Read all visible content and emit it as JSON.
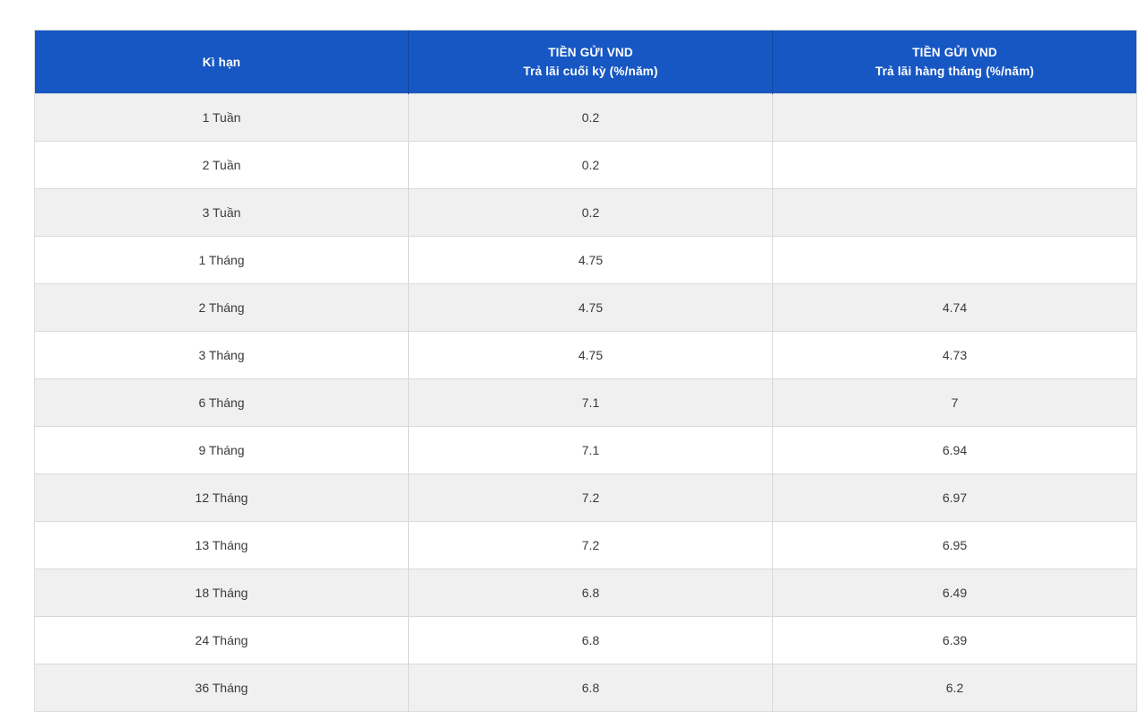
{
  "colors": {
    "header_bg": "#1757c3",
    "header_text": "#ffffff",
    "row_alt_bg": "#f0f0f1",
    "row_bg": "#ffffff",
    "border": "#d9d9d9",
    "body_text": "#3a3a3a"
  },
  "table": {
    "header": {
      "term_label": "Kì hạn",
      "col_end_of_term": {
        "line1": "TIỀN GỬI VND",
        "line2": "Trả lãi cuối kỳ (%/năm)"
      },
      "col_monthly": {
        "line1": "TIỀN GỬI VND",
        "line2": "Trả lãi hàng tháng (%/năm)"
      }
    },
    "rows": [
      {
        "term": "1 Tuần",
        "rate_end_of_term": "0.2",
        "rate_monthly": ""
      },
      {
        "term": "2 Tuần",
        "rate_end_of_term": "0.2",
        "rate_monthly": ""
      },
      {
        "term": "3 Tuần",
        "rate_end_of_term": "0.2",
        "rate_monthly": ""
      },
      {
        "term": "1 Tháng",
        "rate_end_of_term": "4.75",
        "rate_monthly": ""
      },
      {
        "term": "2 Tháng",
        "rate_end_of_term": "4.75",
        "rate_monthly": "4.74"
      },
      {
        "term": "3 Tháng",
        "rate_end_of_term": "4.75",
        "rate_monthly": "4.73"
      },
      {
        "term": "6 Tháng",
        "rate_end_of_term": "7.1",
        "rate_monthly": "7"
      },
      {
        "term": "9 Tháng",
        "rate_end_of_term": "7.1",
        "rate_monthly": "6.94"
      },
      {
        "term": "12 Tháng",
        "rate_end_of_term": "7.2",
        "rate_monthly": "6.97"
      },
      {
        "term": "13 Tháng",
        "rate_end_of_term": "7.2",
        "rate_monthly": "6.95"
      },
      {
        "term": "18 Tháng",
        "rate_end_of_term": "6.8",
        "rate_monthly": "6.49"
      },
      {
        "term": "24 Tháng",
        "rate_end_of_term": "6.8",
        "rate_monthly": "6.39"
      },
      {
        "term": "36 Tháng",
        "rate_end_of_term": "6.8",
        "rate_monthly": "6.2"
      }
    ]
  }
}
